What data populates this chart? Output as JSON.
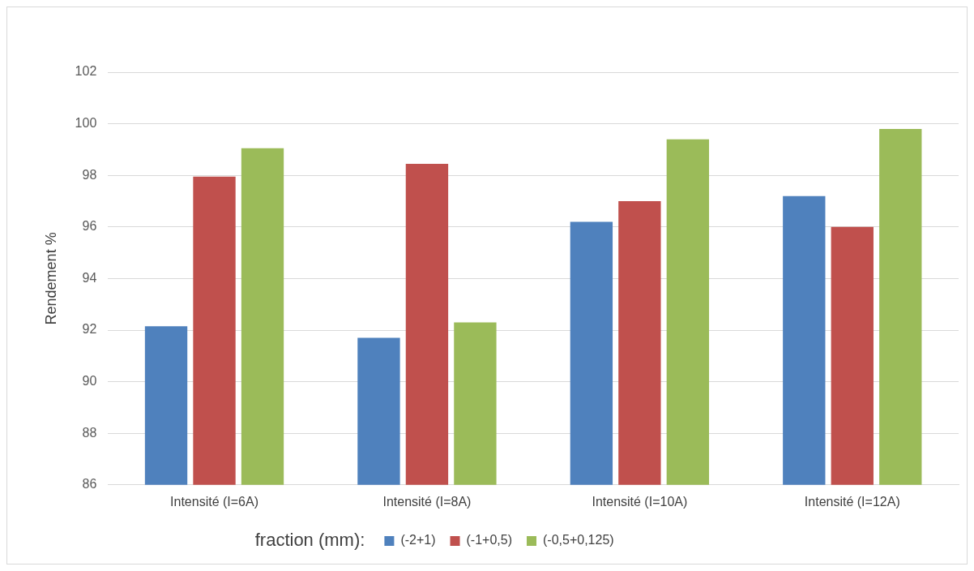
{
  "chart_data": {
    "type": "bar",
    "ylabel": "Rendement %",
    "legend_title": "fraction (mm):",
    "categories": [
      "Intensité (I=6A)",
      "Intensité (I=8A)",
      "Intensité (I=10A)",
      "Intensité (I=12A)"
    ],
    "series": [
      {
        "name": "(-2+1)",
        "color": "#4f81bd",
        "values": [
          92.15,
          91.7,
          96.2,
          97.2
        ]
      },
      {
        "name": "(-1+0,5)",
        "color": "#c0504d",
        "values": [
          97.95,
          98.45,
          97.0,
          96.0
        ]
      },
      {
        "name": "(-0,5+0,125)",
        "color": "#9bbb59",
        "values": [
          99.05,
          92.3,
          99.4,
          99.8
        ]
      }
    ],
    "ylim": [
      86,
      102
    ],
    "yticks": [
      86,
      88,
      90,
      92,
      94,
      96,
      98,
      100,
      102
    ],
    "grid": "y",
    "legend": "bottom"
  }
}
